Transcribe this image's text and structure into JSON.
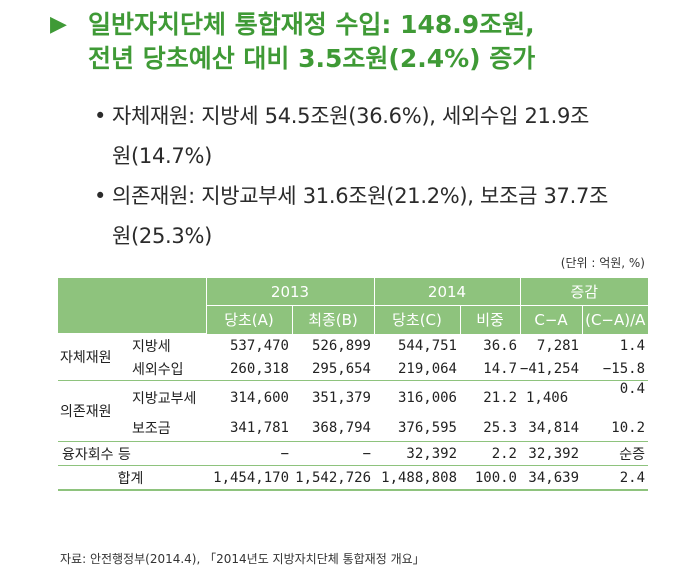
{
  "headline": {
    "line1": "일반자치단체 통합재정 수입: 148.9조원,",
    "line2": "전년 당초예산 대비 3.5조원(2.4%) 증가"
  },
  "bullets": [
    {
      "line1": "자체재원: 지방세 54.5조원(36.6%), 세외수입 21.9조",
      "line2": "원(14.7%)"
    },
    {
      "line1": "의존재원: 지방교부세 31.6조원(21.2%), 보조금 37.7조",
      "line2": "원(25.3%)"
    }
  ],
  "unit": "(단위 : 억원, %)",
  "table": {
    "year1": "2013",
    "year2": "2014",
    "change": "증감",
    "cols": [
      "당초(A)",
      "최종(B)",
      "당초(C)",
      "비중",
      "C−A",
      "(C−A)/A"
    ],
    "groups": {
      "own": "자체재원",
      "dep": "의존재원"
    },
    "rows": [
      {
        "label": "지방세",
        "a": "537,470",
        "b": "526,899",
        "c": "544,751",
        "share": "36.6",
        "diff": "7,281",
        "rate": "1.4"
      },
      {
        "label": "세외수입",
        "a": "260,318",
        "b": "295,654",
        "c": "219,064",
        "share": "14.7",
        "diff": "−41,254",
        "rate": "−15.8"
      },
      {
        "label": "지방교부세",
        "a": "314,600",
        "b": "351,379",
        "c": "316,006",
        "share": "21.2",
        "diff": "1,406",
        "rate": "0.4"
      },
      {
        "label": "보조금",
        "a": "341,781",
        "b": "368,794",
        "c": "376,595",
        "share": "25.3",
        "diff": "34,814",
        "rate": "10.2"
      },
      {
        "label": "융자회수 등",
        "a": "−",
        "b": "−",
        "c": "32,392",
        "share": "2.2",
        "diff": "32,392",
        "rate": "순증"
      },
      {
        "label": "합계",
        "a": "1,454,170",
        "b": "1,542,726",
        "c": "1,488,808",
        "share": "100.0",
        "diff": "34,639",
        "rate": "2.4"
      }
    ]
  },
  "source": "자료: 안전행정부(2014.4), 「2014년도 지방자치단체 통합재정 개요」",
  "colors": {
    "accent": "#3f9a36",
    "header_bg": "#8ec37d"
  }
}
